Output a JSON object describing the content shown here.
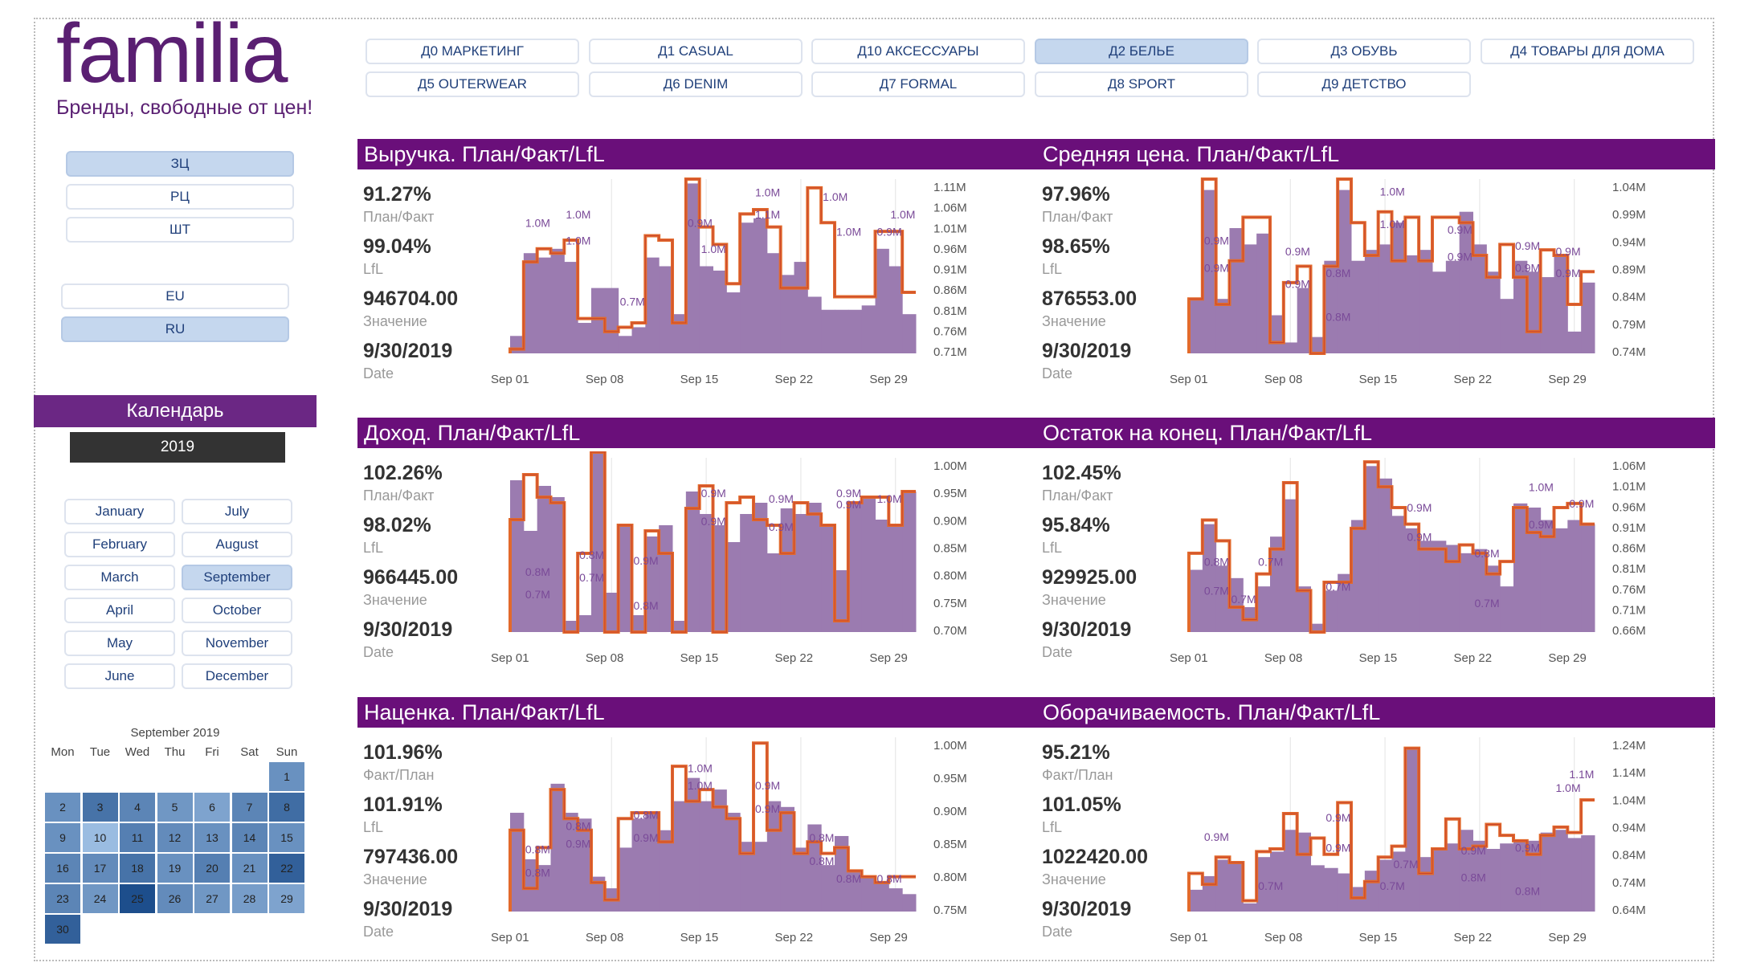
{
  "brand": {
    "logo_text": "familia",
    "tagline": "Бренды, свободные от цен!"
  },
  "departments": [
    {
      "label": "Д0 МАРКЕТИНГ",
      "selected": false
    },
    {
      "label": "Д1 CASUAL",
      "selected": false
    },
    {
      "label": "Д10 АКСЕССУАРЫ",
      "selected": false
    },
    {
      "label": "Д2 БЕЛЬЕ",
      "selected": true
    },
    {
      "label": "Д3 ОБУВЬ",
      "selected": false
    },
    {
      "label": "Д4 ТОВАРЫ ДЛЯ ДОМА",
      "selected": false
    },
    {
      "label": "Д5 OUTERWEAR",
      "selected": false
    },
    {
      "label": "Д6 DENIM",
      "selected": false
    },
    {
      "label": "Д7 FORMAL",
      "selected": false
    },
    {
      "label": "Д8 SPORT",
      "selected": false
    },
    {
      "label": "Д9 ДЕТСТВО",
      "selected": false
    }
  ],
  "price_filters": [
    {
      "label": "ЗЦ",
      "selected": true
    },
    {
      "label": "РЦ",
      "selected": false
    },
    {
      "label": "ШТ",
      "selected": false
    }
  ],
  "region_filters": [
    {
      "label": "EU",
      "selected": false
    },
    {
      "label": "RU",
      "selected": true
    }
  ],
  "calendar": {
    "header": "Календарь",
    "year": "2019",
    "months": [
      {
        "label": "January",
        "selected": false
      },
      {
        "label": "July",
        "selected": false
      },
      {
        "label": "February",
        "selected": false
      },
      {
        "label": "August",
        "selected": false
      },
      {
        "label": "March",
        "selected": false
      },
      {
        "label": "September",
        "selected": true
      },
      {
        "label": "April",
        "selected": false
      },
      {
        "label": "October",
        "selected": false
      },
      {
        "label": "May",
        "selected": false
      },
      {
        "label": "November",
        "selected": false
      },
      {
        "label": "June",
        "selected": false
      },
      {
        "label": "December",
        "selected": false
      }
    ],
    "heatmap_title": "September 2019",
    "weekdays": [
      "Mon",
      "Tue",
      "Wed",
      "Thu",
      "Fri",
      "Sat",
      "Sun"
    ],
    "days": [
      {
        "d": "1",
        "v": 0.45
      },
      {
        "d": "2",
        "v": 0.45
      },
      {
        "d": "3",
        "v": 0.7
      },
      {
        "d": "4",
        "v": 0.55
      },
      {
        "d": "5",
        "v": 0.4
      },
      {
        "d": "6",
        "v": 0.3
      },
      {
        "d": "7",
        "v": 0.55
      },
      {
        "d": "8",
        "v": 0.75
      },
      {
        "d": "9",
        "v": 0.45
      },
      {
        "d": "10",
        "v": 0.1
      },
      {
        "d": "11",
        "v": 0.6
      },
      {
        "d": "12",
        "v": 0.5
      },
      {
        "d": "13",
        "v": 0.45
      },
      {
        "d": "14",
        "v": 0.55
      },
      {
        "d": "15",
        "v": 0.45
      },
      {
        "d": "16",
        "v": 0.55
      },
      {
        "d": "17",
        "v": 0.5
      },
      {
        "d": "18",
        "v": 0.7
      },
      {
        "d": "19",
        "v": 0.45
      },
      {
        "d": "20",
        "v": 0.6
      },
      {
        "d": "21",
        "v": 0.45
      },
      {
        "d": "22",
        "v": 0.85
      },
      {
        "d": "23",
        "v": 0.55
      },
      {
        "d": "24",
        "v": 0.4
      },
      {
        "d": "25",
        "v": 1.0
      },
      {
        "d": "26",
        "v": 0.5
      },
      {
        "d": "27",
        "v": 0.4
      },
      {
        "d": "28",
        "v": 0.35
      },
      {
        "d": "29",
        "v": 0.3
      },
      {
        "d": "30",
        "v": 0.85
      }
    ]
  },
  "kpi_labels": {
    "plan_fact": "План/Факт",
    "fact_plan": "Факт/План",
    "lfl": "LfL",
    "value": "Значение",
    "date": "Date"
  },
  "colors": {
    "bar": "#9b7bb0",
    "plan": "#e26a2c",
    "lfl": "#b02030",
    "title_bg": "#6a0f7a",
    "heat_low": "#a8c8ea",
    "heat_high": "#1d4e8c"
  },
  "chart_data": [
    {
      "type": "bar",
      "title": "Выручка. План/Факт/LfL",
      "kpi": {
        "ratio": "91.27%",
        "ratio_label": "План/Факт",
        "lfl": "99.04%",
        "value": "946704.00",
        "date": "9/30/2019"
      },
      "x_ticks": [
        "Sep 01",
        "Sep 08",
        "Sep 15",
        "Sep 22",
        "Sep 29"
      ],
      "y_ticks": [
        "1.11M",
        "1.06M",
        "1.01M",
        "0.96M",
        "0.91M",
        "0.86M",
        "0.81M",
        "0.76M",
        "0.71M"
      ],
      "ylim": [
        0.71,
        1.11
      ],
      "fact": [
        0.75,
        0.94,
        0.93,
        0.95,
        0.92,
        0.78,
        0.86,
        0.86,
        0.75,
        0.77,
        0.93,
        0.91,
        0.8,
        1.1,
        0.91,
        0.9,
        0.85,
        1.01,
        1.02,
        0.94,
        0.89,
        0.92,
        0.84,
        0.81,
        0.81,
        0.81,
        0.82,
        0.95,
        0.91,
        0.8
      ],
      "plan": [
        0.72,
        0.92,
        0.95,
        0.94,
        0.97,
        0.79,
        0.79,
        0.76,
        0.77,
        0.78,
        0.98,
        0.97,
        0.78,
        1.11,
        1.0,
        0.96,
        0.87,
        1.03,
        1.04,
        1.0,
        0.86,
        0.86,
        1.09,
        1.01,
        0.84,
        0.84,
        0.84,
        0.99,
        0.99,
        0.85
      ],
      "labels": [
        {
          "i": 1,
          "v": 1.0,
          "t": "1.0M"
        },
        {
          "i": 4,
          "v": 1.02,
          "t": "1.0M"
        },
        {
          "i": 4,
          "v": 0.96,
          "t": "1.0M"
        },
        {
          "i": 8,
          "v": 0.82,
          "t": "0.7M"
        },
        {
          "i": 13,
          "v": 1.0,
          "t": "0.9M"
        },
        {
          "i": 14,
          "v": 0.94,
          "t": "1.0M"
        },
        {
          "i": 18,
          "v": 1.07,
          "t": "1.0M"
        },
        {
          "i": 18,
          "v": 1.02,
          "t": "1.1M"
        },
        {
          "i": 23,
          "v": 1.06,
          "t": "1.0M"
        },
        {
          "i": 24,
          "v": 0.98,
          "t": "1.0M"
        },
        {
          "i": 28,
          "v": 1.02,
          "t": "1.0M"
        },
        {
          "i": 27,
          "v": 0.98,
          "t": "0.9M"
        }
      ]
    },
    {
      "type": "bar",
      "title": "Средняя цена. План/Факт/LfL",
      "kpi": {
        "ratio": "97.96%",
        "ratio_label": "План/Факт",
        "lfl": "98.65%",
        "value": "876553.00",
        "date": "9/30/2019"
      },
      "x_ticks": [
        "Sep 01",
        "Sep 08",
        "Sep 15",
        "Sep 22",
        "Sep 29"
      ],
      "y_ticks": [
        "1.04M",
        "0.99M",
        "0.94M",
        "0.89M",
        "0.84M",
        "0.79M",
        "0.74M"
      ],
      "ylim": [
        0.74,
        1.06
      ],
      "fact": [
        0.84,
        1.04,
        0.84,
        0.97,
        0.94,
        0.96,
        0.81,
        0.76,
        0.86,
        0.77,
        0.91,
        1.04,
        0.91,
        0.93,
        0.94,
        0.98,
        0.92,
        0.93,
        0.89,
        0.91,
        1.0,
        0.94,
        0.89,
        0.84,
        0.91,
        0.89,
        0.88,
        0.92,
        0.78,
        0.87
      ],
      "plan": [
        0.84,
        1.06,
        0.83,
        0.91,
        0.99,
        0.99,
        0.76,
        0.87,
        0.9,
        0.74,
        0.9,
        1.06,
        0.98,
        0.92,
        1.0,
        0.91,
        0.99,
        0.91,
        0.99,
        0.99,
        0.98,
        0.92,
        0.88,
        0.94,
        0.88,
        0.78,
        0.93,
        0.92,
        0.83,
        0.89
      ],
      "labels": [
        {
          "i": 1,
          "v": 0.94,
          "t": "0.9M"
        },
        {
          "i": 1,
          "v": 0.89,
          "t": "0.9M"
        },
        {
          "i": 7,
          "v": 0.92,
          "t": "0.9M"
        },
        {
          "i": 7,
          "v": 0.86,
          "t": "0.9M"
        },
        {
          "i": 10,
          "v": 0.88,
          "t": "0.8M"
        },
        {
          "i": 10,
          "v": 0.8,
          "t": "0.8M"
        },
        {
          "i": 14,
          "v": 1.03,
          "t": "1.0M"
        },
        {
          "i": 14,
          "v": 0.97,
          "t": "1.0M"
        },
        {
          "i": 19,
          "v": 0.96,
          "t": "0.9M"
        },
        {
          "i": 19,
          "v": 0.91,
          "t": "0.9M"
        },
        {
          "i": 24,
          "v": 0.93,
          "t": "0.9M"
        },
        {
          "i": 24,
          "v": 0.89,
          "t": "0.9M"
        },
        {
          "i": 27,
          "v": 0.92,
          "t": "0.9M"
        },
        {
          "i": 27,
          "v": 0.88,
          "t": "0.9M"
        }
      ]
    },
    {
      "type": "bar",
      "title": "Доход. План/Факт/LfL",
      "kpi": {
        "ratio": "102.26%",
        "ratio_label": "План/Факт",
        "lfl": "98.02%",
        "value": "966445.00",
        "date": "9/30/2019"
      },
      "x_ticks": [
        "Sep 01",
        "Sep 08",
        "Sep 15",
        "Sep 22",
        "Sep 29"
      ],
      "y_ticks": [
        "1.00M",
        "0.95M",
        "0.90M",
        "0.85M",
        "0.80M",
        "0.75M",
        "0.70M"
      ],
      "ylim": [
        0.7,
        1.01
      ],
      "fact": [
        0.97,
        0.88,
        0.96,
        0.94,
        0.72,
        0.73,
        1.02,
        0.77,
        0.89,
        0.73,
        0.87,
        0.89,
        0.72,
        0.95,
        0.91,
        0.89,
        0.86,
        0.91,
        0.93,
        0.84,
        0.92,
        0.91,
        0.93,
        0.89,
        0.81,
        0.93,
        0.94,
        0.9,
        0.89,
        0.95
      ],
      "plan": [
        0.9,
        0.98,
        0.94,
        0.93,
        0.7,
        0.84,
        1.02,
        0.7,
        0.89,
        0.7,
        0.88,
        0.84,
        0.7,
        0.92,
        0.96,
        0.7,
        0.93,
        0.94,
        0.9,
        0.89,
        0.84,
        0.93,
        0.91,
        0.89,
        0.72,
        0.93,
        0.94,
        0.94,
        0.89,
        0.95
      ],
      "labels": [
        {
          "i": 1,
          "v": 0.8,
          "t": "0.8M"
        },
        {
          "i": 1,
          "v": 0.76,
          "t": "0.7M"
        },
        {
          "i": 5,
          "v": 0.83,
          "t": "0.8M"
        },
        {
          "i": 5,
          "v": 0.79,
          "t": "0.7M"
        },
        {
          "i": 9,
          "v": 0.82,
          "t": "0.9M"
        },
        {
          "i": 9,
          "v": 0.74,
          "t": "0.8M"
        },
        {
          "i": 14,
          "v": 0.94,
          "t": "0.9M"
        },
        {
          "i": 14,
          "v": 0.89,
          "t": "0.9M"
        },
        {
          "i": 19,
          "v": 0.93,
          "t": "0.9M"
        },
        {
          "i": 19,
          "v": 0.88,
          "t": "0.9M"
        },
        {
          "i": 24,
          "v": 0.94,
          "t": "0.9M"
        },
        {
          "i": 24,
          "v": 0.92,
          "t": "0.9M"
        },
        {
          "i": 27,
          "v": 0.93,
          "t": "1.0M"
        }
      ]
    },
    {
      "type": "bar",
      "title": "Остаток на конец. План/Факт/LfL",
      "kpi": {
        "ratio": "102.45%",
        "ratio_label": "План/Факт",
        "lfl": "95.84%",
        "value": "929925.00",
        "date": "9/30/2019"
      },
      "x_ticks": [
        "Sep 01",
        "Sep 08",
        "Sep 15",
        "Sep 22",
        "Sep 29"
      ],
      "y_ticks": [
        "1.06M",
        "1.01M",
        "0.96M",
        "0.91M",
        "0.86M",
        "0.81M",
        "0.76M",
        "0.71M",
        "0.66M"
      ],
      "ylim": [
        0.66,
        1.08
      ],
      "fact": [
        0.81,
        0.92,
        0.82,
        0.79,
        0.72,
        0.77,
        0.89,
        0.98,
        0.77,
        0.68,
        0.76,
        0.8,
        0.93,
        1.06,
        1.03,
        0.94,
        0.91,
        0.88,
        0.88,
        0.87,
        0.85,
        0.86,
        0.82,
        0.77,
        0.97,
        0.96,
        0.93,
        0.91,
        0.93,
        0.92
      ],
      "plan": [
        0.85,
        0.93,
        0.88,
        0.72,
        0.69,
        0.8,
        0.86,
        1.02,
        0.76,
        0.66,
        0.78,
        0.78,
        0.91,
        1.07,
        1.01,
        0.96,
        0.92,
        0.86,
        0.86,
        0.83,
        0.87,
        0.85,
        0.8,
        0.83,
        0.96,
        0.9,
        0.89,
        0.96,
        0.97,
        0.92
      ],
      "labels": [
        {
          "i": 1,
          "v": 0.82,
          "t": "0.8M"
        },
        {
          "i": 1,
          "v": 0.75,
          "t": "0.7M"
        },
        {
          "i": 3,
          "v": 0.73,
          "t": "0.7M"
        },
        {
          "i": 5,
          "v": 0.82,
          "t": "0.7M"
        },
        {
          "i": 10,
          "v": 0.76,
          "t": "0.7M"
        },
        {
          "i": 16,
          "v": 0.95,
          "t": "0.9M"
        },
        {
          "i": 16,
          "v": 0.88,
          "t": "0.9M"
        },
        {
          "i": 21,
          "v": 0.84,
          "t": "0.8M"
        },
        {
          "i": 21,
          "v": 0.72,
          "t": "0.7M"
        },
        {
          "i": 25,
          "v": 1.0,
          "t": "1.0M"
        },
        {
          "i": 25,
          "v": 0.91,
          "t": "0.9M"
        },
        {
          "i": 28,
          "v": 0.96,
          "t": "0.9M"
        }
      ]
    },
    {
      "type": "bar",
      "title": "Наценка. План/Факт/LfL",
      "kpi": {
        "ratio": "101.96%",
        "ratio_label": "Факт/План",
        "lfl": "101.91%",
        "value": "797436.00",
        "date": "9/30/2019"
      },
      "x_ticks": [
        "Sep 01",
        "Sep 08",
        "Sep 15",
        "Sep 22",
        "Sep 29"
      ],
      "y_ticks": [
        "1.00M",
        "0.95M",
        "0.90M",
        "0.85M",
        "0.80M",
        "0.75M"
      ],
      "ylim": [
        0.74,
        1.04
      ],
      "fact": [
        0.91,
        0.83,
        0.82,
        0.96,
        0.91,
        0.9,
        0.8,
        0.78,
        0.85,
        0.9,
        0.91,
        0.88,
        0.93,
        0.97,
        0.93,
        0.95,
        0.91,
        0.86,
        0.86,
        0.93,
        0.92,
        0.85,
        0.89,
        0.82,
        0.87,
        0.81,
        0.8,
        0.79,
        0.78,
        0.77
      ],
      "plan": [
        0.88,
        0.78,
        0.85,
        0.95,
        0.9,
        0.88,
        0.79,
        0.76,
        0.9,
        0.91,
        0.91,
        0.86,
        0.99,
        0.93,
        0.95,
        0.92,
        0.9,
        0.84,
        1.03,
        0.88,
        0.91,
        0.84,
        0.86,
        0.84,
        0.85,
        0.81,
        0.8,
        0.79,
        0.8,
        0.8
      ],
      "labels": [
        {
          "i": 1,
          "v": 0.84,
          "t": "0.8M"
        },
        {
          "i": 1,
          "v": 0.8,
          "t": "0.8M"
        },
        {
          "i": 4,
          "v": 0.88,
          "t": "0.8M"
        },
        {
          "i": 4,
          "v": 0.85,
          "t": "0.9M"
        },
        {
          "i": 9,
          "v": 0.9,
          "t": "0.8M"
        },
        {
          "i": 9,
          "v": 0.86,
          "t": "0.9M"
        },
        {
          "i": 13,
          "v": 0.98,
          "t": "1.0M"
        },
        {
          "i": 13,
          "v": 0.95,
          "t": "1.0M"
        },
        {
          "i": 18,
          "v": 0.95,
          "t": "0.9M"
        },
        {
          "i": 18,
          "v": 0.91,
          "t": "0.9M"
        },
        {
          "i": 22,
          "v": 0.86,
          "t": "0.8M"
        },
        {
          "i": 22,
          "v": 0.82,
          "t": "0.8M"
        },
        {
          "i": 27,
          "v": 0.79,
          "t": "0.8M"
        },
        {
          "i": 24,
          "v": 0.79,
          "t": "0.8M"
        }
      ]
    },
    {
      "type": "bar",
      "title": "Оборачиваемость. План/Факт/LfL",
      "kpi": {
        "ratio": "95.21%",
        "ratio_label": "Факт/План",
        "lfl": "101.05%",
        "value": "1022420.00",
        "date": "9/30/2019"
      },
      "x_ticks": [
        "Sep 01",
        "Sep 08",
        "Sep 15",
        "Sep 22",
        "Sep 29"
      ],
      "y_ticks": [
        "1.24M",
        "1.14M",
        "1.04M",
        "0.94M",
        "0.84M",
        "0.74M",
        "0.64M"
      ],
      "ylim": [
        0.64,
        1.28
      ],
      "fact": [
        0.72,
        0.77,
        0.83,
        0.82,
        0.67,
        0.84,
        0.86,
        0.94,
        0.93,
        0.81,
        0.8,
        0.78,
        0.73,
        0.79,
        0.83,
        0.86,
        1.24,
        0.84,
        0.87,
        0.89,
        0.94,
        0.9,
        0.87,
        0.89,
        0.9,
        0.9,
        0.93,
        0.94,
        0.91,
        0.92
      ],
      "plan": [
        0.78,
        0.74,
        0.84,
        0.82,
        0.68,
        0.86,
        0.87,
        1.0,
        0.85,
        0.91,
        0.85,
        1.04,
        0.69,
        0.75,
        0.84,
        0.88,
        1.24,
        0.78,
        0.87,
        0.98,
        0.87,
        0.88,
        0.96,
        0.92,
        0.9,
        0.85,
        0.92,
        0.95,
        0.93,
        1.05
      ],
      "labels": [
        {
          "i": 1,
          "v": 0.9,
          "t": "0.9M"
        },
        {
          "i": 5,
          "v": 0.72,
          "t": "0.7M"
        },
        {
          "i": 10,
          "v": 0.97,
          "t": "0.9M"
        },
        {
          "i": 10,
          "v": 0.86,
          "t": "0.9M"
        },
        {
          "i": 14,
          "v": 0.72,
          "t": "0.7M"
        },
        {
          "i": 15,
          "v": 0.8,
          "t": "0.7M"
        },
        {
          "i": 20,
          "v": 0.85,
          "t": "0.9M"
        },
        {
          "i": 20,
          "v": 0.75,
          "t": "0.8M"
        },
        {
          "i": 24,
          "v": 0.86,
          "t": "0.9M"
        },
        {
          "i": 24,
          "v": 0.7,
          "t": "0.8M"
        },
        {
          "i": 28,
          "v": 1.13,
          "t": "1.1M"
        },
        {
          "i": 27,
          "v": 1.08,
          "t": "1.0M"
        }
      ]
    }
  ]
}
